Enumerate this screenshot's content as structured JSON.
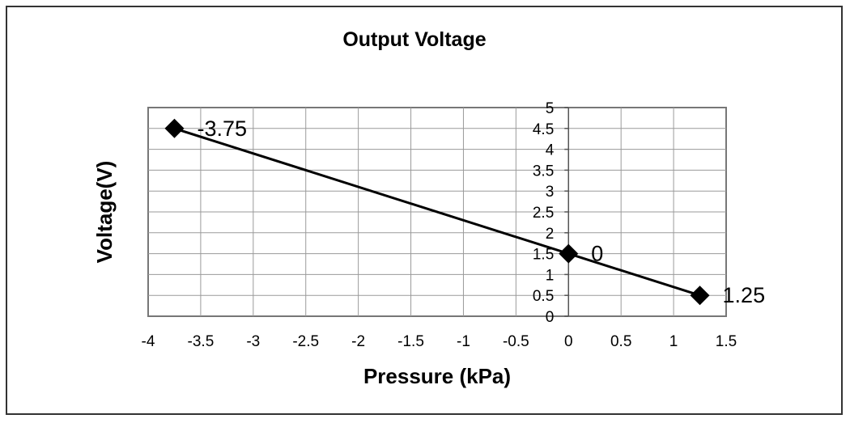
{
  "chart_data": {
    "type": "scatter",
    "title": "Output Voltage",
    "xlabel": "Pressure (kPa)",
    "ylabel": "Voltage(V)",
    "xlim": [
      -4,
      1.5
    ],
    "ylim": [
      0,
      5
    ],
    "x_ticks": [
      "-4",
      "-3.5",
      "-3",
      "-2.5",
      "-2",
      "-1.5",
      "-1",
      "-0.5",
      "0",
      "0.5",
      "1",
      "1.5"
    ],
    "y_ticks": [
      "0",
      "0.5",
      "1",
      "1.5",
      "2",
      "2.5",
      "3",
      "3.5",
      "4",
      "4.5",
      "5"
    ],
    "grid": true,
    "series": [
      {
        "x": [
          -3.75,
          0,
          1.25
        ],
        "y": [
          4.5,
          1.5,
          0.5
        ],
        "labels": [
          "-3.75",
          "0",
          "1.25"
        ],
        "marker": "diamond",
        "color": "#000000"
      }
    ]
  }
}
